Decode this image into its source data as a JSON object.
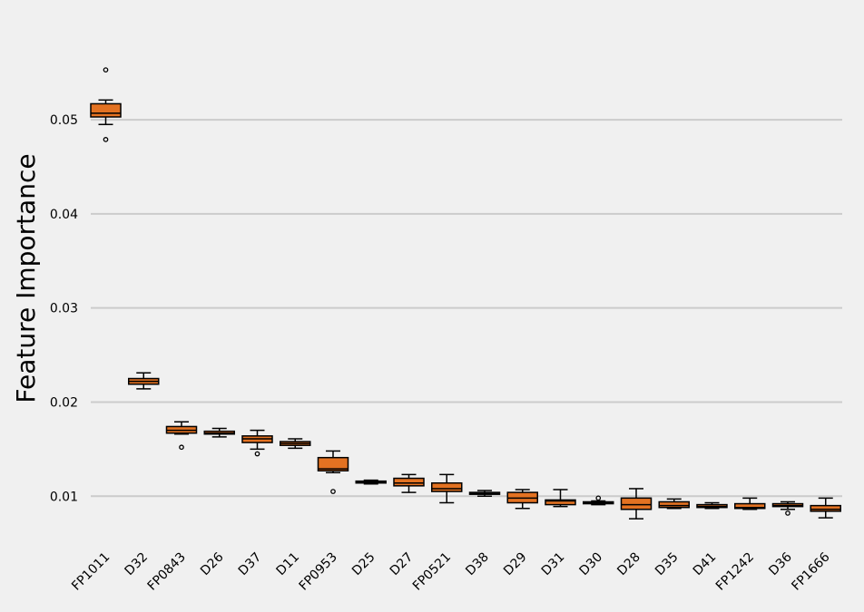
{
  "chart_data": {
    "type": "box",
    "title": "",
    "xlabel": "",
    "ylabel": "Feature Importance",
    "ylim": [
      0.0054,
      0.0608
    ],
    "yticks": [
      0.01,
      0.02,
      0.03,
      0.04,
      0.05
    ],
    "ytick_labels": [
      "0.01",
      "0.02",
      "0.03",
      "0.04",
      "0.05"
    ],
    "grid": "horizontal",
    "box_color": "#e37222",
    "categories": [
      "FP1011",
      "D32",
      "FP0843",
      "D26",
      "D37",
      "D11",
      "FP0953",
      "D25",
      "D27",
      "FP0521",
      "D38",
      "D29",
      "D31",
      "D30",
      "D28",
      "D35",
      "D41",
      "FP1242",
      "D36",
      "FP1666"
    ],
    "boxes": [
      {
        "whislo": 0.0495,
        "q1": 0.0503,
        "med": 0.0507,
        "q3": 0.0517,
        "whishi": 0.0521,
        "fliers": [
          0.0553,
          0.0479
        ]
      },
      {
        "whislo": 0.0214,
        "q1": 0.0219,
        "med": 0.0222,
        "q3": 0.0225,
        "whishi": 0.0231,
        "fliers": []
      },
      {
        "whislo": 0.0166,
        "q1": 0.0167,
        "med": 0.017,
        "q3": 0.0174,
        "whishi": 0.0179,
        "fliers": [
          0.0152
        ]
      },
      {
        "whislo": 0.0163,
        "q1": 0.0166,
        "med": 0.0167,
        "q3": 0.0169,
        "whishi": 0.0172,
        "fliers": []
      },
      {
        "whislo": 0.015,
        "q1": 0.0157,
        "med": 0.0161,
        "q3": 0.0164,
        "whishi": 0.017,
        "fliers": [
          0.0145
        ]
      },
      {
        "whislo": 0.0151,
        "q1": 0.0154,
        "med": 0.0156,
        "q3": 0.0158,
        "whishi": 0.0161,
        "fliers": []
      },
      {
        "whislo": 0.0125,
        "q1": 0.0127,
        "med": 0.0129,
        "q3": 0.0141,
        "whishi": 0.0148,
        "fliers": [
          0.0105
        ]
      },
      {
        "whislo": 0.0113,
        "q1": 0.0114,
        "med": 0.0115,
        "q3": 0.0116,
        "whishi": 0.0117,
        "fliers": []
      },
      {
        "whislo": 0.0104,
        "q1": 0.0111,
        "med": 0.0114,
        "q3": 0.0119,
        "whishi": 0.0123,
        "fliers": []
      },
      {
        "whislo": 0.0093,
        "q1": 0.0105,
        "med": 0.0108,
        "q3": 0.0114,
        "whishi": 0.0123,
        "fliers": []
      },
      {
        "whislo": 0.01,
        "q1": 0.0102,
        "med": 0.0103,
        "q3": 0.0104,
        "whishi": 0.0106,
        "fliers": []
      },
      {
        "whislo": 0.0087,
        "q1": 0.0093,
        "med": 0.0098,
        "q3": 0.0104,
        "whishi": 0.0107,
        "fliers": []
      },
      {
        "whislo": 0.0089,
        "q1": 0.0091,
        "med": 0.0095,
        "q3": 0.0096,
        "whishi": 0.0107,
        "fliers": []
      },
      {
        "whislo": 0.0091,
        "q1": 0.0092,
        "med": 0.0093,
        "q3": 0.0094,
        "whishi": 0.0095,
        "fliers": [
          0.0098
        ]
      },
      {
        "whislo": 0.0076,
        "q1": 0.0086,
        "med": 0.0091,
        "q3": 0.0098,
        "whishi": 0.0108,
        "fliers": []
      },
      {
        "whislo": 0.0087,
        "q1": 0.0088,
        "med": 0.009,
        "q3": 0.0094,
        "whishi": 0.0097,
        "fliers": []
      },
      {
        "whislo": 0.0087,
        "q1": 0.0088,
        "med": 0.0089,
        "q3": 0.0091,
        "whishi": 0.0093,
        "fliers": []
      },
      {
        "whislo": 0.0086,
        "q1": 0.0087,
        "med": 0.0088,
        "q3": 0.0092,
        "whishi": 0.0098,
        "fliers": []
      },
      {
        "whislo": 0.0086,
        "q1": 0.0089,
        "med": 0.009,
        "q3": 0.0092,
        "whishi": 0.0094,
        "fliers": [
          0.0082
        ]
      },
      {
        "whislo": 0.0077,
        "q1": 0.0084,
        "med": 0.0086,
        "q3": 0.009,
        "whishi": 0.0098,
        "fliers": []
      }
    ]
  }
}
